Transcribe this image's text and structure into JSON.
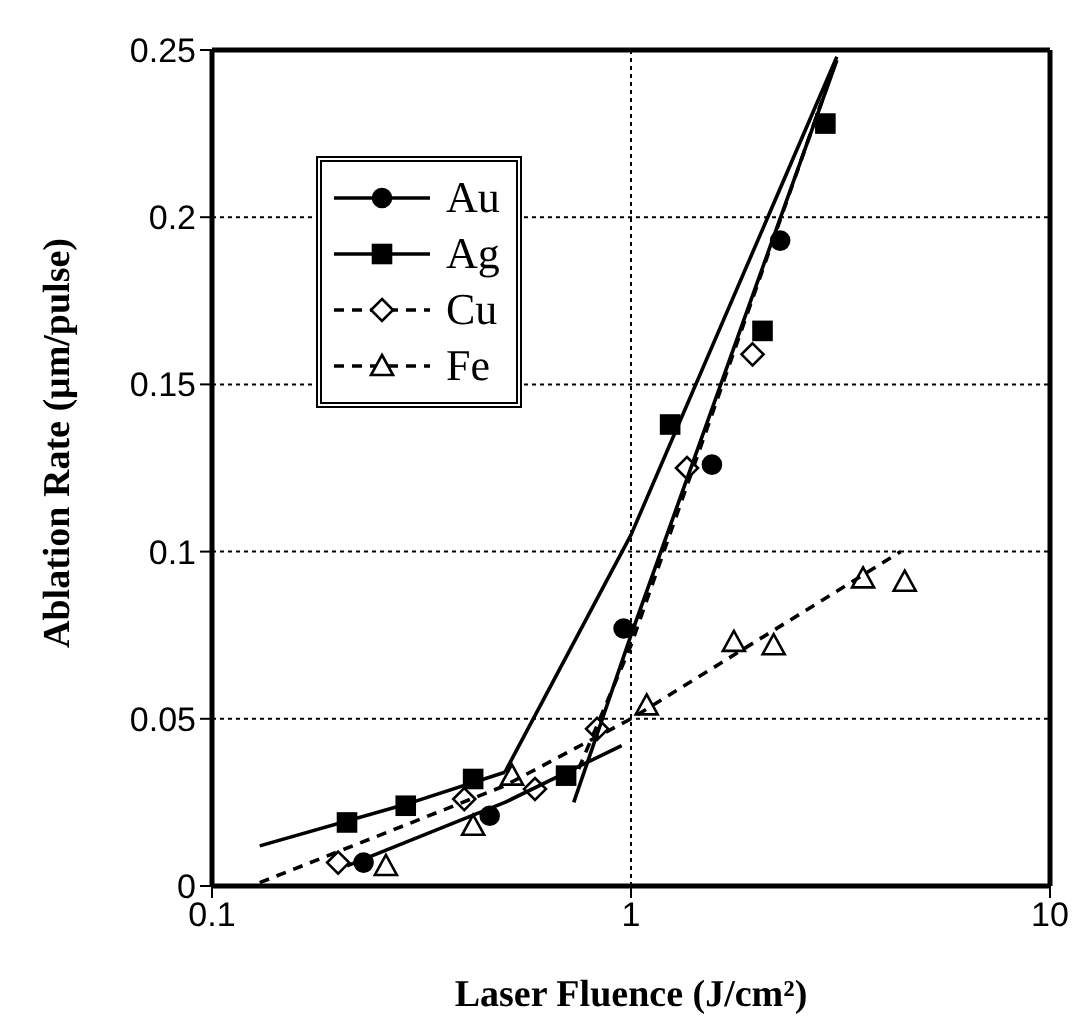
{
  "chart_data": {
    "type": "scatter",
    "xlabel": "Laser Fluence (J/cm²)",
    "ylabel": "Ablation Rate (μm/pulse)",
    "log": "x",
    "xlim": [
      0.1,
      10
    ],
    "xticks": [
      0.1,
      1,
      10
    ],
    "ylim": [
      0,
      0.25
    ],
    "yticks": [
      0,
      0.05,
      0.1,
      0.15,
      0.2,
      0.25
    ],
    "grid": true,
    "legend": "top left",
    "series": [
      {
        "name": "Au",
        "color": "#000000",
        "marker": "circle",
        "line_style": "solid",
        "x": [
          0.23,
          0.46,
          0.96,
          1.56,
          2.27
        ],
        "values": [
          0.007,
          0.021,
          0.077,
          0.126,
          0.193
        ]
      },
      {
        "name": "Ag",
        "color": "#000000",
        "marker": "square",
        "line_style": "solid",
        "x": [
          0.21,
          0.29,
          0.42,
          0.7,
          1.24,
          2.06,
          2.91
        ],
        "values": [
          0.019,
          0.024,
          0.032,
          0.033,
          0.138,
          0.166,
          0.228
        ]
      },
      {
        "name": "Cu",
        "color": "#000000",
        "marker": "diamond",
        "line_style": "dashed",
        "x": [
          0.2,
          0.4,
          0.59,
          0.83,
          1.36,
          1.95
        ],
        "values": [
          0.007,
          0.026,
          0.029,
          0.047,
          0.125,
          0.159
        ]
      },
      {
        "name": "Fe",
        "color": "#000000",
        "marker": "triangle",
        "line_style": "dashed",
        "x": [
          0.26,
          0.42,
          0.52,
          1.09,
          1.76,
          2.19,
          3.58,
          4.5
        ],
        "values": [
          0.006,
          0.018,
          0.033,
          0.054,
          0.073,
          0.072,
          0.092,
          0.091
        ]
      },
      {
        "type": "line",
        "color": "#000000",
        "marker": "none",
        "line_style": "solid",
        "x": [
          0.13,
          0.3,
          0.5
        ],
        "values": [
          0.012,
          0.025,
          0.034
        ]
      },
      {
        "type": "line",
        "color": "#000000",
        "marker": "none",
        "line_style": "solid",
        "x": [
          0.5,
          1,
          3.1
        ],
        "values": [
          0.034,
          0.105,
          0.248
        ]
      },
      {
        "type": "line",
        "color": "#000000",
        "marker": "none",
        "line_style": "solid",
        "x": [
          0.21,
          0.5,
          0.95
        ],
        "values": [
          0.006,
          0.025,
          0.042
        ]
      },
      {
        "type": "line",
        "color": "#000000",
        "marker": "none",
        "line_style": "solid",
        "x": [
          0.73,
          1,
          3.1
        ],
        "values": [
          0.025,
          0.075,
          0.247
        ]
      },
      {
        "type": "line",
        "color": "#000000",
        "marker": "none",
        "line_style": "dashed",
        "x": [
          0.75,
          1,
          3.05
        ],
        "values": [
          0.035,
          0.072,
          0.245
        ]
      },
      {
        "type": "line",
        "color": "#000000",
        "marker": "none",
        "line_style": "dashed",
        "x": [
          0.13,
          0.5,
          1,
          4.4
        ],
        "values": [
          0.001,
          0.03,
          0.05,
          0.1
        ]
      }
    ]
  }
}
